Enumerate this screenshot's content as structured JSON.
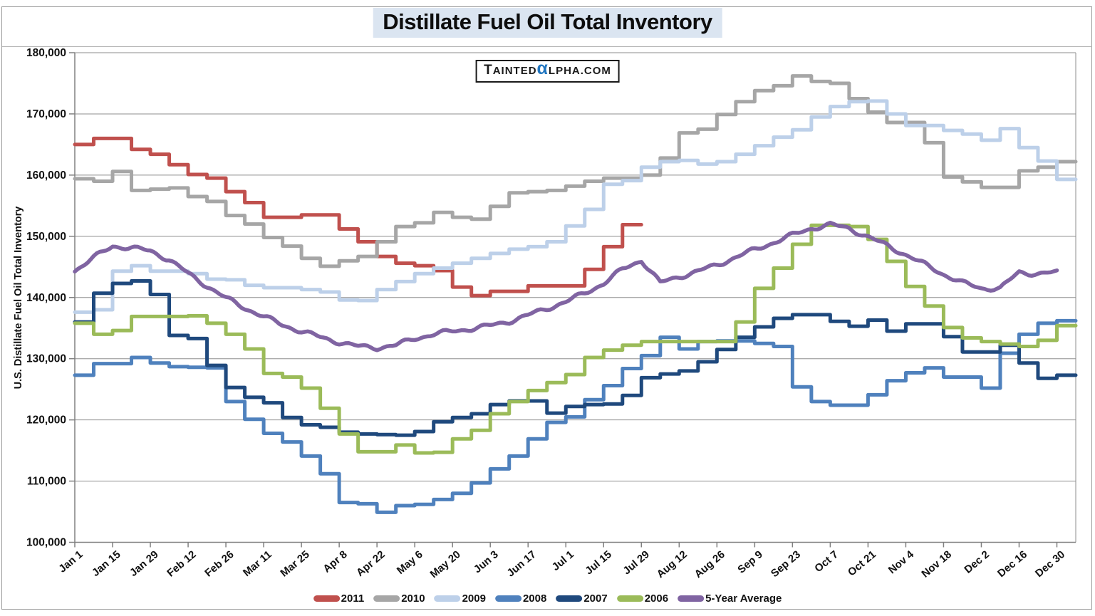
{
  "header": {
    "title": "Distillate Fuel Oil Total Inventory"
  },
  "watermark": {
    "part1": "TAINTED",
    "alpha": "α",
    "part2": "LPHA.COM"
  },
  "colors": {
    "title_highlight": "#dbe5f1",
    "watermark_alpha_blue": "#2176c0",
    "gridline": "#8e8e8e",
    "axis": "#808080",
    "text": "#111111"
  },
  "chart_data": {
    "type": "line",
    "title": "Distillate Fuel Oil Total Inventory",
    "xlabel": "",
    "ylabel": "U.S. Distillate Fuel Oil Total Inventory",
    "ylim": [
      100000,
      180000
    ],
    "ytick_step": 10000,
    "ytick_labels": [
      "100,000",
      "110,000",
      "120,000",
      "130,000",
      "140,000",
      "150,000",
      "160,000",
      "170,000",
      "180,000"
    ],
    "grid": true,
    "legend_position": "bottom",
    "x_is_weekly": true,
    "weeks_total": 53,
    "xtick_every_n_weeks": 2,
    "xtick_labels": [
      "Jan 1",
      "Jan 15",
      "Jan 29",
      "Feb 12",
      "Feb 26",
      "Mar 11",
      "Mar 25",
      "Apr 8",
      "Apr 22",
      "May 6",
      "May 20",
      "Jun 3",
      "Jun 17",
      "Jul 1",
      "Jul 15",
      "Jul 29",
      "Aug 12",
      "Aug 26",
      "Sep 9",
      "Sep 23",
      "Oct 7",
      "Oct 21",
      "Nov 4",
      "Nov 18",
      "Dec 2",
      "Dec 16",
      "Dec 30"
    ],
    "series": [
      {
        "name": "2011",
        "color": "#C0504D",
        "style": "step",
        "width": 5,
        "values": [
          165000,
          166000,
          166000,
          164200,
          163400,
          161700,
          160100,
          159500,
          157300,
          155500,
          153100,
          153100,
          153500,
          153500,
          151200,
          149100,
          146700,
          145600,
          145200,
          144400,
          141700,
          140300,
          141000,
          141000,
          141900,
          141900,
          141900,
          144600,
          148300,
          151900
        ]
      },
      {
        "name": "2010",
        "color": "#A6A6A6",
        "style": "step",
        "width": 5,
        "values": [
          159400,
          159000,
          160600,
          157500,
          157700,
          157900,
          156500,
          155700,
          153400,
          152000,
          149800,
          148400,
          146400,
          145100,
          146000,
          146700,
          149100,
          151600,
          152200,
          153900,
          153100,
          152800,
          154900,
          157100,
          157300,
          157500,
          158200,
          159000,
          159500,
          159500,
          160000,
          162800,
          166900,
          167500,
          169900,
          172000,
          173800,
          174600,
          176200,
          175300,
          175000,
          172500,
          170300,
          168600,
          168600,
          165300,
          159700,
          158900,
          158000,
          158000,
          160700,
          161300,
          162200
        ]
      },
      {
        "name": "2009",
        "color": "#BDD0E9",
        "style": "step",
        "width": 5,
        "values": [
          137600,
          138000,
          144300,
          145200,
          144300,
          144300,
          143900,
          143000,
          142900,
          142000,
          141600,
          141600,
          141300,
          140900,
          139600,
          139500,
          141300,
          142600,
          143900,
          144800,
          145600,
          146400,
          147200,
          147900,
          148300,
          149100,
          151700,
          154400,
          158500,
          159100,
          161300,
          162200,
          162400,
          161800,
          162200,
          163400,
          164800,
          166200,
          167400,
          169500,
          171200,
          172000,
          172100,
          170000,
          168100,
          168100,
          167300,
          166700,
          165700,
          167600,
          164500,
          162300,
          159300
        ]
      },
      {
        "name": "2008",
        "color": "#4F81BD",
        "style": "step",
        "width": 5,
        "values": [
          127300,
          129200,
          129200,
          130200,
          129300,
          128700,
          128600,
          128500,
          123000,
          120100,
          117800,
          116400,
          114100,
          111200,
          106500,
          106300,
          104900,
          106000,
          106200,
          107000,
          108000,
          109700,
          112000,
          114100,
          116900,
          119600,
          120500,
          123300,
          125600,
          128400,
          130500,
          133500,
          131600,
          132800,
          132900,
          132900,
          132500,
          132000,
          125400,
          123000,
          122400,
          122400,
          124100,
          126400,
          127700,
          128500,
          127000,
          127000,
          125200,
          130900,
          134000,
          135800,
          136200
        ]
      },
      {
        "name": "2007",
        "color": "#1F497D",
        "style": "step",
        "width": 5,
        "values": [
          136000,
          140700,
          142300,
          142700,
          140500,
          133800,
          133300,
          128900,
          125300,
          123700,
          122800,
          120400,
          119200,
          118800,
          118000,
          117700,
          117600,
          117500,
          118100,
          119700,
          120400,
          121000,
          122500,
          123100,
          123100,
          121100,
          122200,
          122500,
          122600,
          124000,
          126900,
          127500,
          128000,
          129500,
          131500,
          133500,
          135200,
          136600,
          137200,
          137200,
          136100,
          135300,
          136300,
          134500,
          135700,
          135700,
          133600,
          131100,
          131100,
          132200,
          129300,
          126800,
          127300
        ]
      },
      {
        "name": "2006",
        "color": "#9BBB59",
        "style": "step",
        "width": 5,
        "values": [
          135800,
          134000,
          134600,
          136900,
          136900,
          136900,
          137000,
          135800,
          134000,
          131600,
          127600,
          127000,
          125200,
          121900,
          117700,
          114800,
          114800,
          115900,
          114600,
          114700,
          116900,
          118300,
          121000,
          123000,
          124800,
          126100,
          127400,
          130200,
          131400,
          132200,
          132800,
          132800,
          132800,
          132800,
          132800,
          136000,
          141500,
          144800,
          148700,
          151800,
          151800,
          151600,
          149500,
          145900,
          141800,
          138600,
          135100,
          133400,
          132800,
          132400,
          132000,
          133000,
          135400
        ]
      },
      {
        "name": "5-Year Average",
        "color": "#8064A2",
        "style": "smooth",
        "width": 5.5,
        "values": [
          144400,
          146500,
          148400,
          148100,
          147600,
          146200,
          143900,
          141900,
          139900,
          138300,
          136900,
          135500,
          134500,
          133500,
          132700,
          132000,
          131800,
          132200,
          133300,
          134000,
          134500,
          134900,
          135400,
          136100,
          137100,
          138200,
          139300,
          140700,
          142300,
          144600,
          146100,
          142400,
          143400,
          144300,
          145300,
          146600,
          147800,
          149000,
          150200,
          151300,
          151900,
          151300,
          149900,
          148500,
          147000,
          145400,
          143800,
          142400,
          141500,
          141500,
          144100,
          143900,
          144100
        ]
      }
    ]
  }
}
